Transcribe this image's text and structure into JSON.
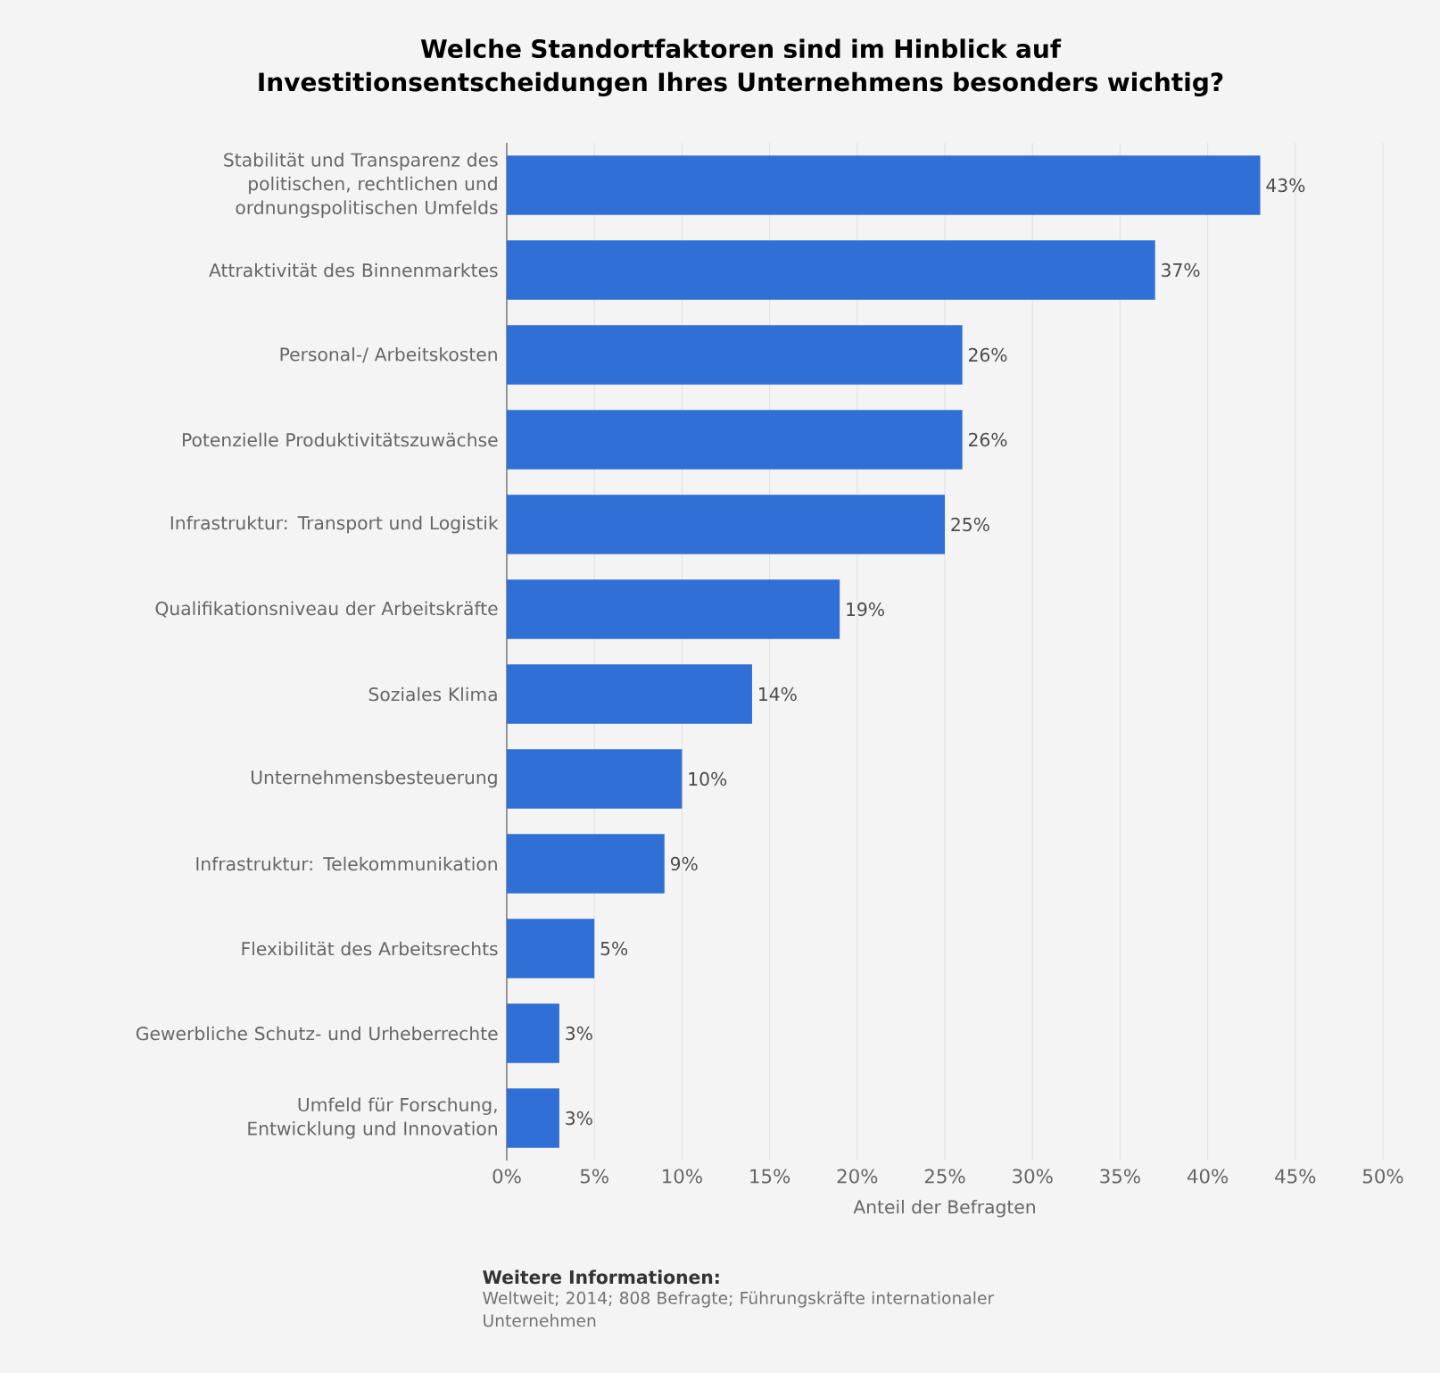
{
  "chart_data": {
    "type": "bar",
    "orientation": "horizontal",
    "title": "Welche Standortfaktoren sind im Hinblick auf Investitionsentscheidungen Ihres Unternehmens besonders wichtig?",
    "categories": [
      "Stabilität und Transparenz des politischen, rechtlichen und ordnungspolitischen Umfelds",
      "Attraktivität des Binnenmarktes",
      "Personal-/ Arbeitskosten",
      "Potenzielle Produktivitätszuwächse",
      "Infrastruktur: Transport und Logistik",
      "Qualifikationsniveau der Arbeitskräfte",
      "Soziales Klima",
      "Unternehmensbesteuerung",
      "Infrastruktur: Telekommunikation",
      "Flexibilität des Arbeitsrechts",
      "Gewerbliche Schutz- und Urheberrechte",
      "Umfeld für Forschung, Entwicklung und Innovation"
    ],
    "values": [
      43,
      37,
      26,
      26,
      25,
      19,
      14,
      10,
      9,
      5,
      3,
      3
    ],
    "value_labels": [
      "43%",
      "37%",
      "26%",
      "26%",
      "25%",
      "19%",
      "14%",
      "10%",
      "9%",
      "5%",
      "3%",
      "3%"
    ],
    "color": "#2f6fd6",
    "xlabel": "Anteil der Befragten",
    "xlim": [
      0,
      50
    ],
    "xticks": [
      {
        "value": 0,
        "label": "0%"
      },
      {
        "value": 5,
        "label": "5%"
      },
      {
        "value": 10,
        "label": "10%"
      },
      {
        "value": 15,
        "label": "15%"
      },
      {
        "value": 20,
        "label": "20%"
      },
      {
        "value": 25,
        "label": "25%"
      },
      {
        "value": 30,
        "label": "30%"
      },
      {
        "value": 35,
        "label": "35%"
      },
      {
        "value": 40,
        "label": "40%"
      },
      {
        "value": 45,
        "label": "45%"
      },
      {
        "value": 50,
        "label": "50%"
      }
    ],
    "grid": "x",
    "annotations": [
      "Weitere Informationen:",
      "Weltweit; 2014; 808 Befragte; Führungskräfte internationaler Unternehmen"
    ]
  }
}
